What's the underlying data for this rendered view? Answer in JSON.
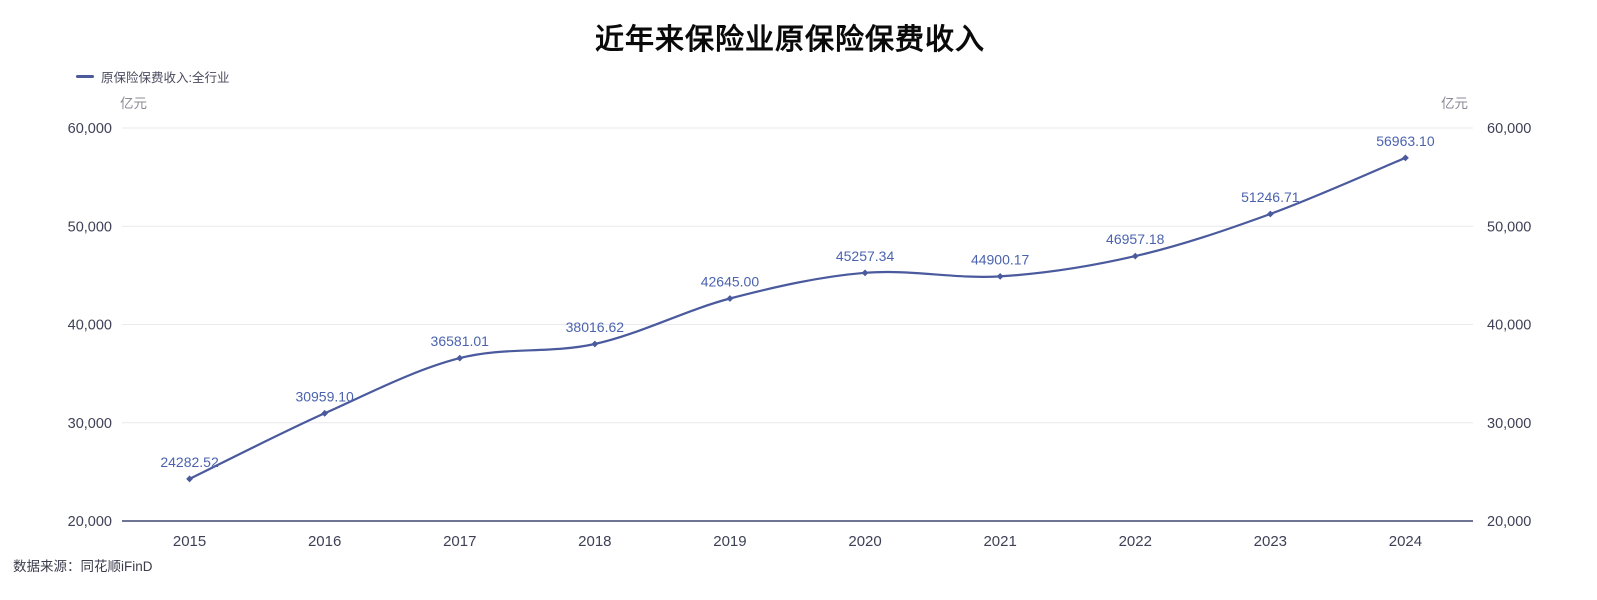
{
  "title": "近年来保险业原保险保费收入",
  "legend": {
    "label": "原保险保费收入:全行业"
  },
  "axis_unit_left": "亿元",
  "axis_unit_right": "亿元",
  "source": "数据来源：同花顺iFinD",
  "colors": {
    "line": "#4A5A9D",
    "marker": "#4A5A9D",
    "data_label": "#4B63AE",
    "grid": "#E9E9EE",
    "axis": "#3D4770",
    "tick_text": "#3E4156",
    "unit_text": "#8A8A96",
    "title_text": "#0A0A0A",
    "background": "#FFFFFF"
  },
  "chart_data": {
    "type": "line",
    "title": "近年来保险业原保险保费收入",
    "categories": [
      "2015",
      "2016",
      "2017",
      "2018",
      "2019",
      "2020",
      "2021",
      "2022",
      "2023",
      "2024"
    ],
    "series": [
      {
        "name": "原保险保费收入:全行业",
        "values": [
          24282.52,
          30959.1,
          36581.01,
          38016.62,
          42645.0,
          45257.34,
          44900.17,
          46957.18,
          51246.71,
          56963.1
        ],
        "labels": [
          "24282.52",
          "30959.10",
          "36581.01",
          "38016.62",
          "42645.00",
          "45257.34",
          "44900.17",
          "46957.18",
          "51246.71",
          "56963.10"
        ]
      }
    ],
    "xlabel": "",
    "ylabel": "亿元",
    "ylim": [
      20000,
      60000
    ],
    "yticks": [
      20000,
      30000,
      40000,
      50000,
      60000
    ],
    "ytick_labels": [
      "20,000",
      "30,000",
      "40,000",
      "50,000",
      "60,000"
    ],
    "grid": true,
    "smooth": true,
    "legend_position": "top-left",
    "dual_y_axis_labels": true
  }
}
